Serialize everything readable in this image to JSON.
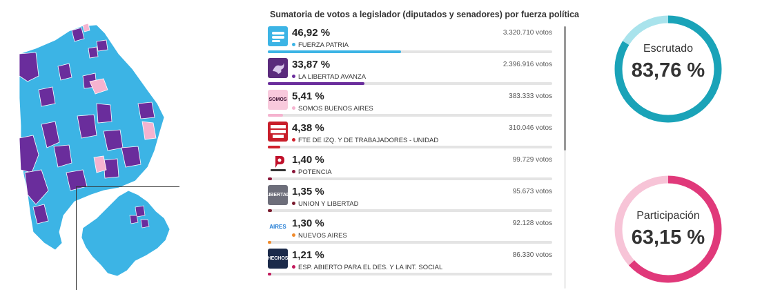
{
  "results": {
    "title": "Sumatoria de votos a legislador (diputados y senadores) por fuerza política",
    "parties": [
      {
        "pct": "46,92 %",
        "name": "FUERZA PATRIA",
        "votes": "3.320.710 votos",
        "share": 46.92,
        "color": "#3cb4e5",
        "logo_text": "",
        "logo_bg": "#3cb4e5",
        "logo_icon": "flag-icon"
      },
      {
        "pct": "33,87 %",
        "name": "LA LIBERTAD AVANZA",
        "votes": "2.396.916 votos",
        "share": 33.87,
        "color": "#6a2d9c",
        "logo_text": "",
        "logo_bg": "#5a2a7c",
        "logo_icon": "lion-icon"
      },
      {
        "pct": "5,41 %",
        "name": "SOMOS BUENOS AIRES",
        "votes": "383.333 votos",
        "share": 5.41,
        "color": "#f5b3cf",
        "logo_text": "SOMOS",
        "logo_bg": "#f8c9dc",
        "logo_icon": "somos-logo"
      },
      {
        "pct": "4,38 %",
        "name": "FTE DE IZQ. Y DE TRABAJADORES - UNIDAD",
        "votes": "310.046 votos",
        "share": 4.38,
        "color": "#d0202c",
        "logo_text": "",
        "logo_bg": "#c81e2a",
        "logo_icon": "fit-logo"
      },
      {
        "pct": "1,40 %",
        "name": "POTENCIA",
        "votes": "99.729 votos",
        "share": 1.4,
        "color": "#8a1538",
        "logo_text": "potencia",
        "logo_bg": "#ffffff",
        "logo_icon": "potencia-logo"
      },
      {
        "pct": "1,35 %",
        "name": "UNION Y LIBERTAD",
        "votes": "95.673 votos",
        "share": 1.35,
        "color": "#7a1b2e",
        "logo_text": "LIBERTAD",
        "logo_bg": "#6d6e7a",
        "logo_icon": "union-logo"
      },
      {
        "pct": "1,30 %",
        "name": "NUEVOS AIRES",
        "votes": "92.128 votos",
        "share": 1.3,
        "color": "#f08a2b",
        "logo_text": "AIRES",
        "logo_bg": "#ffffff",
        "logo_icon": "nuevos-aires-logo"
      },
      {
        "pct": "1,21 %",
        "name": "ESP. ABIERTO PARA EL DES. Y LA INT. SOCIAL",
        "votes": "86.330 votos",
        "share": 1.21,
        "color": "#c2185b",
        "logo_text": "HECHOS",
        "logo_bg": "#1b2a4a",
        "logo_icon": "hechos-logo"
      }
    ],
    "bar_scale_max": 100
  },
  "gauges": [
    {
      "label": "Escrutado",
      "value": "83,76 %",
      "fraction": 0.8376,
      "color": "#1aa3b8",
      "track": "#a9e3ec"
    },
    {
      "label": "Participación",
      "value": "63,15 %",
      "fraction": 0.6315,
      "color": "#e0397a",
      "track": "#f7c4d7"
    }
  ],
  "map": {
    "colors": {
      "fuerza_patria": "#3cb4e5",
      "libertad_avanza": "#6a2d9c",
      "somos": "#f5b3cf"
    }
  }
}
